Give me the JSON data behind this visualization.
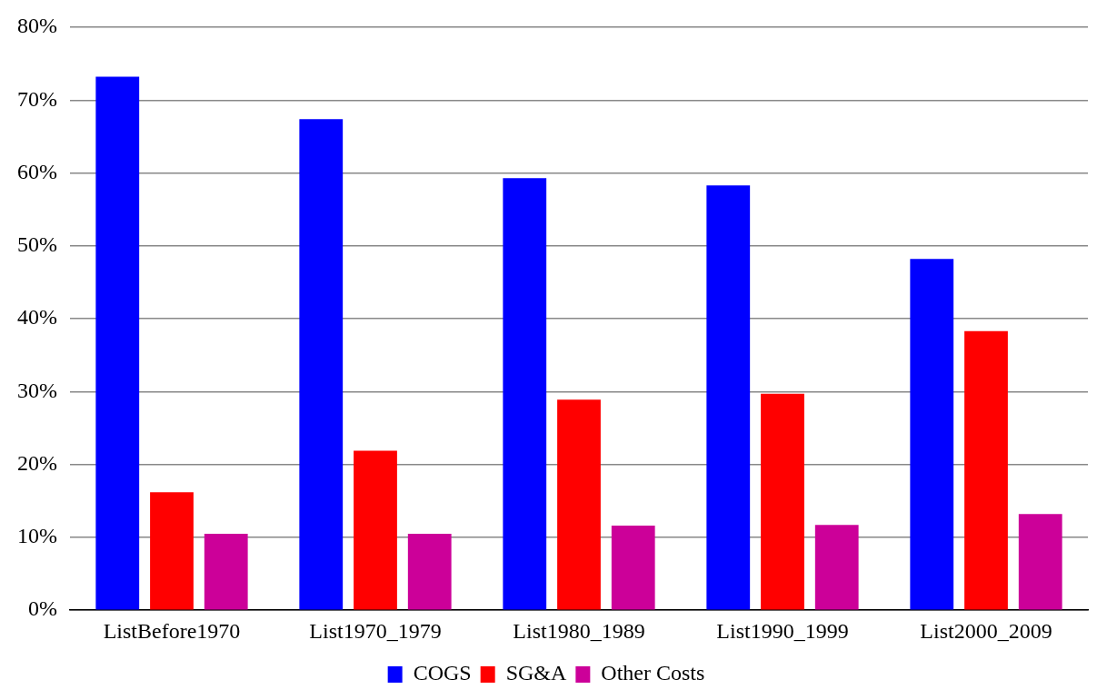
{
  "chart_data": {
    "type": "bar",
    "categories": [
      "ListBefore1970",
      "List1970_1979",
      "List1980_1989",
      "List1990_1999",
      "List2000_2009"
    ],
    "series": [
      {
        "name": "COGS",
        "color": "#0000ff",
        "values": [
          73.2,
          67.4,
          59.3,
          58.3,
          48.2
        ]
      },
      {
        "name": "SG&A",
        "color": "#ff0000",
        "values": [
          16.2,
          21.9,
          28.9,
          29.7,
          38.3
        ]
      },
      {
        "name": "Other Costs",
        "color": "#cc0099",
        "values": [
          10.5,
          10.5,
          11.6,
          11.7,
          13.2
        ]
      }
    ],
    "ylim": [
      0,
      80
    ],
    "yticks": [
      {
        "value": 0,
        "label": "0%"
      },
      {
        "value": 10,
        "label": "10%"
      },
      {
        "value": 20,
        "label": "20%"
      },
      {
        "value": 30,
        "label": "30%"
      },
      {
        "value": 40,
        "label": "40%"
      },
      {
        "value": 50,
        "label": "50%"
      },
      {
        "value": 60,
        "label": "60%"
      },
      {
        "value": 70,
        "label": "70%"
      },
      {
        "value": 80,
        "label": "80%"
      }
    ],
    "grid": "y",
    "legend": "bottom"
  }
}
